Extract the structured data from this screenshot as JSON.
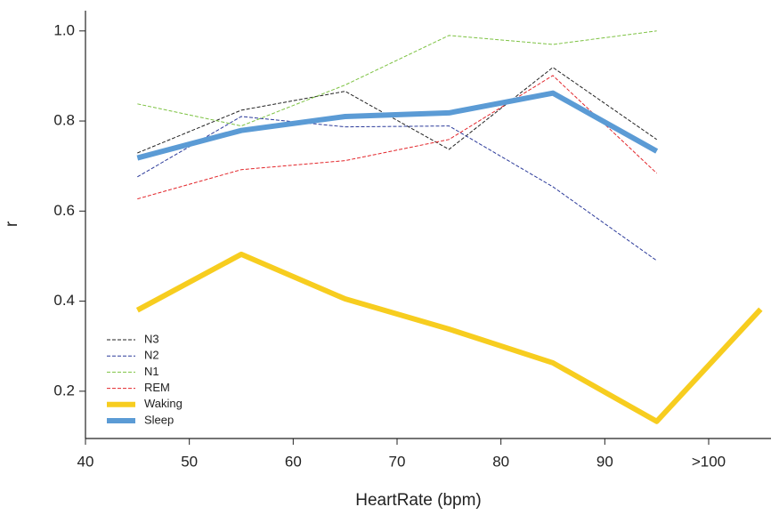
{
  "chart_data": {
    "type": "line",
    "xlabel": "HeartRate (bpm)",
    "ylabel": "r",
    "x": [
      45,
      55,
      65,
      75,
      85,
      95,
      105
    ],
    "series": [
      {
        "name": "N3",
        "color": "#222222",
        "dashed": true,
        "linewidth": 1,
        "values": [
          0.729,
          0.824,
          0.866,
          0.737,
          0.919,
          0.759,
          null
        ]
      },
      {
        "name": "N2",
        "color": "#2b3a9a",
        "dashed": true,
        "linewidth": 1,
        "values": [
          0.676,
          0.81,
          0.787,
          0.789,
          0.654,
          0.49,
          null
        ]
      },
      {
        "name": "N1",
        "color": "#7dc242",
        "dashed": true,
        "linewidth": 1,
        "values": [
          0.838,
          0.789,
          0.88,
          0.99,
          0.97,
          1.0,
          null
        ]
      },
      {
        "name": "REM",
        "color": "#e3262b",
        "dashed": true,
        "linewidth": 1,
        "values": [
          0.627,
          0.692,
          0.712,
          0.759,
          0.901,
          0.684,
          null
        ]
      },
      {
        "name": "Waking",
        "color": "#f7cd1f",
        "dashed": false,
        "linewidth": 6,
        "values": [
          0.38,
          0.504,
          0.405,
          0.338,
          0.263,
          0.133,
          0.382
        ]
      },
      {
        "name": "Sleep",
        "color": "#5b9bd5",
        "dashed": false,
        "linewidth": 6,
        "values": [
          0.718,
          0.779,
          0.81,
          0.818,
          0.862,
          0.733,
          null
        ]
      }
    ],
    "xlim": [
      40,
      106
    ],
    "ylim": [
      0.095,
      1.045
    ],
    "xticks": [
      40,
      50,
      60,
      70,
      80,
      90,
      {
        "value": 100,
        "label": ">100"
      }
    ],
    "yticks": [
      0.2,
      0.4,
      0.6,
      0.8,
      {
        "value": 1,
        "label": "1.0"
      }
    ],
    "legend": "lower-left"
  }
}
